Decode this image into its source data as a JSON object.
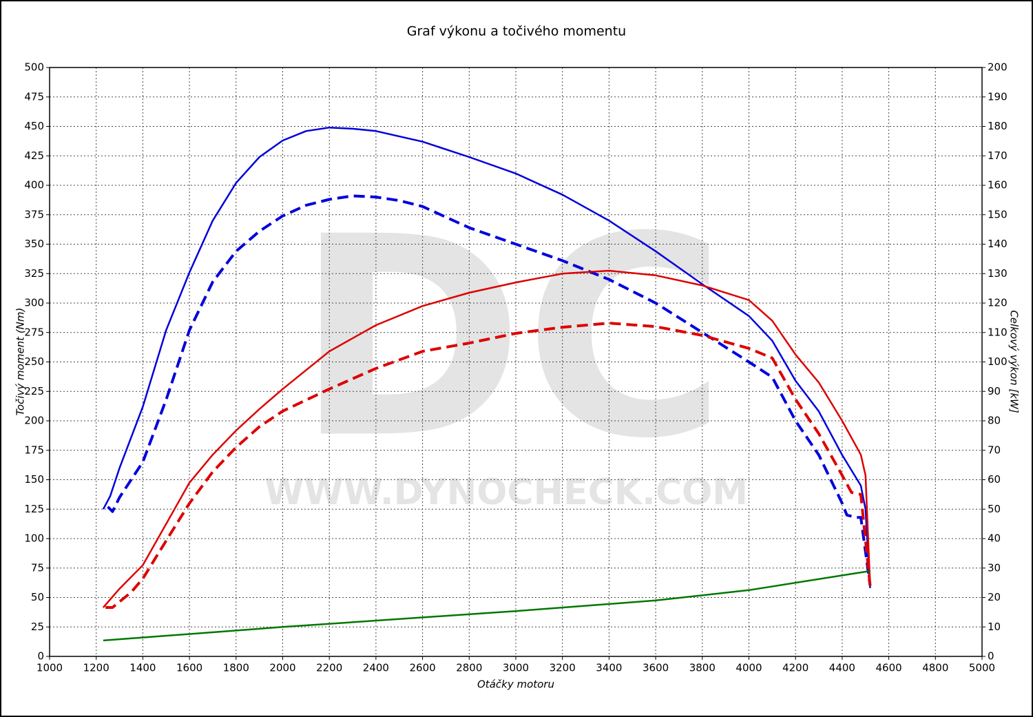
{
  "chart_data": {
    "type": "line",
    "title": "Graf výkonu a točivého momentu",
    "xlabel": "Otáčky motoru",
    "ylabel": "Točivý moment (Nm)",
    "y2label": "Celkový výkon [kW]",
    "watermark": "DC",
    "watermark_url": "WWW.DYNOCHECK.COM",
    "xlim": [
      1000,
      5000
    ],
    "xticks": [
      1000,
      1200,
      1400,
      1600,
      1800,
      2000,
      2200,
      2400,
      2600,
      2800,
      3000,
      3200,
      3400,
      3600,
      3800,
      4000,
      4200,
      4400,
      4600,
      4800,
      5000
    ],
    "ylim": [
      0,
      500
    ],
    "yticks": [
      0,
      25,
      50,
      75,
      100,
      125,
      150,
      175,
      200,
      225,
      250,
      275,
      300,
      325,
      350,
      375,
      400,
      425,
      450,
      475,
      500
    ],
    "y2lim": [
      0,
      200
    ],
    "y2ticks": [
      0,
      10,
      20,
      30,
      40,
      50,
      60,
      70,
      80,
      90,
      100,
      110,
      120,
      130,
      140,
      150,
      160,
      170,
      180,
      190,
      200
    ],
    "grid": true,
    "series": [
      {
        "color": "#0000dd",
        "dashed": false,
        "axis": "y",
        "x": [
          1230,
          1260,
          1300,
          1400,
          1500,
          1600,
          1700,
          1800,
          1900,
          2000,
          2100,
          2200,
          2300,
          2400,
          2600,
          2800,
          3000,
          3200,
          3400,
          3600,
          3800,
          4000,
          4100,
          4200,
          4300,
          4400,
          4480,
          4500,
          4520
        ],
        "values": [
          125,
          136,
          160,
          212,
          277,
          326,
          370,
          402,
          424,
          438,
          446,
          449,
          448,
          446,
          437,
          424,
          410,
          392,
          370,
          344,
          316,
          289,
          268,
          234,
          208,
          171,
          145,
          125,
          58
        ]
      },
      {
        "color": "#0000dd",
        "dashed": true,
        "axis": "y",
        "x": [
          1250,
          1270,
          1300,
          1400,
          1500,
          1600,
          1700,
          1800,
          1900,
          2000,
          2100,
          2200,
          2300,
          2400,
          2500,
          2600,
          2800,
          3000,
          3200,
          3400,
          3600,
          3800,
          4000,
          4100,
          4200,
          4300,
          4400,
          4420,
          4460,
          4480,
          4520
        ],
        "values": [
          127,
          123,
          135,
          165,
          218,
          277,
          318,
          344,
          361,
          374,
          383,
          388,
          391,
          390,
          387,
          382,
          364,
          350,
          336,
          320,
          300,
          275,
          250,
          237,
          200,
          171,
          130,
          120,
          118,
          118,
          60
        ]
      },
      {
        "color": "#dd0000",
        "dashed": false,
        "axis": "y2",
        "x": [
          1230,
          1300,
          1400,
          1500,
          1600,
          1700,
          1800,
          1900,
          2000,
          2200,
          2400,
          2600,
          2800,
          3000,
          3200,
          3400,
          3600,
          3800,
          4000,
          4100,
          4200,
          4300,
          4400,
          4480,
          4500,
          4520
        ],
        "values": [
          16.6,
          23,
          31,
          45,
          59,
          68.5,
          76.7,
          84,
          90.8,
          103.6,
          112.5,
          119,
          123.5,
          127,
          130,
          131,
          129.4,
          126,
          121,
          114,
          102.5,
          93,
          80,
          68.5,
          61.5,
          24
        ]
      },
      {
        "color": "#dd0000",
        "dashed": true,
        "axis": "y2",
        "x": [
          1240,
          1270,
          1350,
          1400,
          1500,
          1600,
          1700,
          1800,
          1900,
          2000,
          2200,
          2400,
          2600,
          2800,
          3000,
          3200,
          3400,
          3600,
          3800,
          4000,
          4100,
          4200,
          4300,
          4400,
          4440,
          4480,
          4520
        ],
        "values": [
          16.6,
          16.6,
          21.8,
          26.4,
          39.3,
          52,
          62.7,
          71,
          78,
          83.3,
          90.8,
          97.8,
          103.6,
          106.4,
          109.7,
          111.8,
          113.2,
          112,
          109,
          104.6,
          101.3,
          87.3,
          75.6,
          61.5,
          55.7,
          55,
          24
        ]
      },
      {
        "color": "#007700",
        "dashed": false,
        "axis": "y2",
        "x": [
          1230,
          2000,
          3000,
          3600,
          4000,
          4520
        ],
        "values": [
          5.4,
          10,
          15.4,
          19,
          22.5,
          29
        ]
      }
    ]
  }
}
